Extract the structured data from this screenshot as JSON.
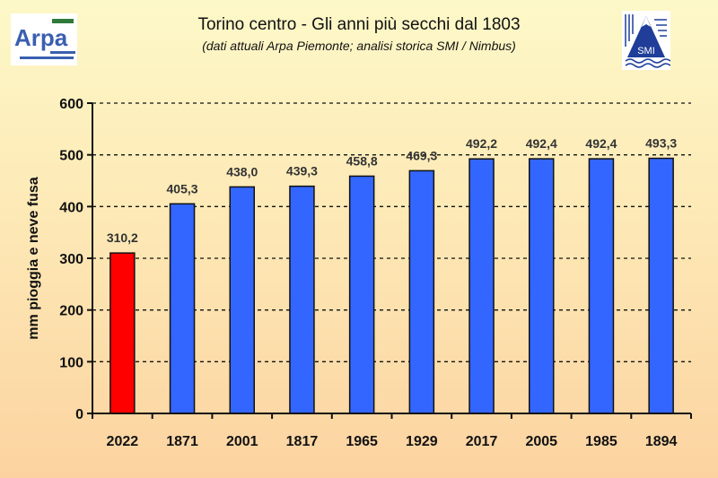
{
  "logos": {
    "left": "Arpa Piemonte - Agenzia Regionale per la Protezione Ambientale",
    "right": "SMI"
  },
  "chart_data": {
    "type": "bar",
    "title": "Torino centro - Gli anni più secchi dal 1803",
    "subtitle": "(dati attuali Arpa Piemonte; analisi storica SMI / Nimbus)",
    "ylabel": "mm pioggia e neve fusa",
    "xlabel": "",
    "ylim": [
      0,
      600
    ],
    "yticks": [
      0,
      100,
      200,
      300,
      400,
      500,
      600
    ],
    "grid": true,
    "categories": [
      "2022",
      "1871",
      "2001",
      "1817",
      "1965",
      "1929",
      "2017",
      "2005",
      "1985",
      "1894"
    ],
    "values": [
      310.2,
      405.3,
      438.0,
      439.3,
      458.8,
      469.3,
      492.2,
      492.4,
      492.4,
      493.3
    ],
    "data_labels": [
      "310,2",
      "405,3",
      "438,0",
      "439,3",
      "458,8",
      "469,3",
      "492,2",
      "492,4",
      "492,4",
      "493,3"
    ],
    "colors": [
      "#ff0000",
      "#3366ff",
      "#3366ff",
      "#3366ff",
      "#3366ff",
      "#3366ff",
      "#3366ff",
      "#3366ff",
      "#3366ff",
      "#3366ff"
    ]
  }
}
